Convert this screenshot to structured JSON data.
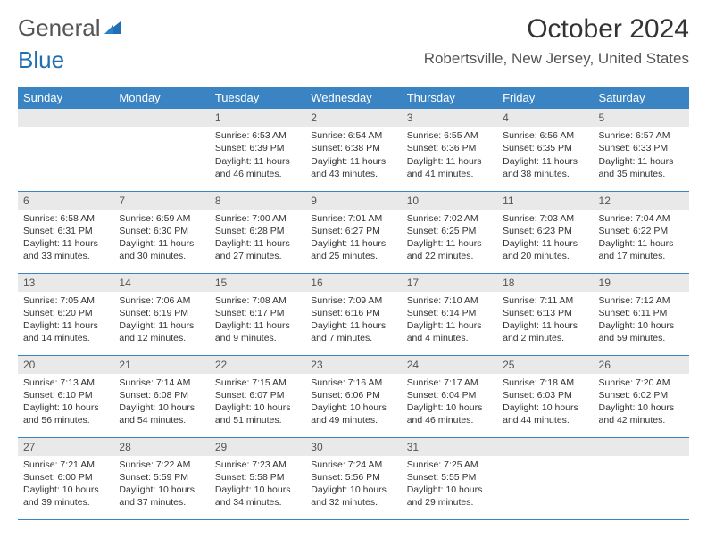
{
  "logo": {
    "text_gray": "General",
    "text_blue": "Blue"
  },
  "header": {
    "month_title": "October 2024",
    "location": "Robertsville, New Jersey, United States"
  },
  "styling": {
    "header_bg": "#3b84c4",
    "header_fg": "#ffffff",
    "daynum_bg": "#e9e9e9",
    "row_border": "#3b84c4",
    "body_text": "#333333",
    "font_family": "Arial",
    "th_fontsize": 13,
    "cell_fontsize": 10.5,
    "title_fontsize": 30,
    "location_fontsize": 17
  },
  "day_headers": [
    "Sunday",
    "Monday",
    "Tuesday",
    "Wednesday",
    "Thursday",
    "Friday",
    "Saturday"
  ],
  "weeks": [
    [
      null,
      null,
      {
        "n": "1",
        "sr": "Sunrise: 6:53 AM",
        "ss": "Sunset: 6:39 PM",
        "d1": "Daylight: 11 hours",
        "d2": "and 46 minutes."
      },
      {
        "n": "2",
        "sr": "Sunrise: 6:54 AM",
        "ss": "Sunset: 6:38 PM",
        "d1": "Daylight: 11 hours",
        "d2": "and 43 minutes."
      },
      {
        "n": "3",
        "sr": "Sunrise: 6:55 AM",
        "ss": "Sunset: 6:36 PM",
        "d1": "Daylight: 11 hours",
        "d2": "and 41 minutes."
      },
      {
        "n": "4",
        "sr": "Sunrise: 6:56 AM",
        "ss": "Sunset: 6:35 PM",
        "d1": "Daylight: 11 hours",
        "d2": "and 38 minutes."
      },
      {
        "n": "5",
        "sr": "Sunrise: 6:57 AM",
        "ss": "Sunset: 6:33 PM",
        "d1": "Daylight: 11 hours",
        "d2": "and 35 minutes."
      }
    ],
    [
      {
        "n": "6",
        "sr": "Sunrise: 6:58 AM",
        "ss": "Sunset: 6:31 PM",
        "d1": "Daylight: 11 hours",
        "d2": "and 33 minutes."
      },
      {
        "n": "7",
        "sr": "Sunrise: 6:59 AM",
        "ss": "Sunset: 6:30 PM",
        "d1": "Daylight: 11 hours",
        "d2": "and 30 minutes."
      },
      {
        "n": "8",
        "sr": "Sunrise: 7:00 AM",
        "ss": "Sunset: 6:28 PM",
        "d1": "Daylight: 11 hours",
        "d2": "and 27 minutes."
      },
      {
        "n": "9",
        "sr": "Sunrise: 7:01 AM",
        "ss": "Sunset: 6:27 PM",
        "d1": "Daylight: 11 hours",
        "d2": "and 25 minutes."
      },
      {
        "n": "10",
        "sr": "Sunrise: 7:02 AM",
        "ss": "Sunset: 6:25 PM",
        "d1": "Daylight: 11 hours",
        "d2": "and 22 minutes."
      },
      {
        "n": "11",
        "sr": "Sunrise: 7:03 AM",
        "ss": "Sunset: 6:23 PM",
        "d1": "Daylight: 11 hours",
        "d2": "and 20 minutes."
      },
      {
        "n": "12",
        "sr": "Sunrise: 7:04 AM",
        "ss": "Sunset: 6:22 PM",
        "d1": "Daylight: 11 hours",
        "d2": "and 17 minutes."
      }
    ],
    [
      {
        "n": "13",
        "sr": "Sunrise: 7:05 AM",
        "ss": "Sunset: 6:20 PM",
        "d1": "Daylight: 11 hours",
        "d2": "and 14 minutes."
      },
      {
        "n": "14",
        "sr": "Sunrise: 7:06 AM",
        "ss": "Sunset: 6:19 PM",
        "d1": "Daylight: 11 hours",
        "d2": "and 12 minutes."
      },
      {
        "n": "15",
        "sr": "Sunrise: 7:08 AM",
        "ss": "Sunset: 6:17 PM",
        "d1": "Daylight: 11 hours",
        "d2": "and 9 minutes."
      },
      {
        "n": "16",
        "sr": "Sunrise: 7:09 AM",
        "ss": "Sunset: 6:16 PM",
        "d1": "Daylight: 11 hours",
        "d2": "and 7 minutes."
      },
      {
        "n": "17",
        "sr": "Sunrise: 7:10 AM",
        "ss": "Sunset: 6:14 PM",
        "d1": "Daylight: 11 hours",
        "d2": "and 4 minutes."
      },
      {
        "n": "18",
        "sr": "Sunrise: 7:11 AM",
        "ss": "Sunset: 6:13 PM",
        "d1": "Daylight: 11 hours",
        "d2": "and 2 minutes."
      },
      {
        "n": "19",
        "sr": "Sunrise: 7:12 AM",
        "ss": "Sunset: 6:11 PM",
        "d1": "Daylight: 10 hours",
        "d2": "and 59 minutes."
      }
    ],
    [
      {
        "n": "20",
        "sr": "Sunrise: 7:13 AM",
        "ss": "Sunset: 6:10 PM",
        "d1": "Daylight: 10 hours",
        "d2": "and 56 minutes."
      },
      {
        "n": "21",
        "sr": "Sunrise: 7:14 AM",
        "ss": "Sunset: 6:08 PM",
        "d1": "Daylight: 10 hours",
        "d2": "and 54 minutes."
      },
      {
        "n": "22",
        "sr": "Sunrise: 7:15 AM",
        "ss": "Sunset: 6:07 PM",
        "d1": "Daylight: 10 hours",
        "d2": "and 51 minutes."
      },
      {
        "n": "23",
        "sr": "Sunrise: 7:16 AM",
        "ss": "Sunset: 6:06 PM",
        "d1": "Daylight: 10 hours",
        "d2": "and 49 minutes."
      },
      {
        "n": "24",
        "sr": "Sunrise: 7:17 AM",
        "ss": "Sunset: 6:04 PM",
        "d1": "Daylight: 10 hours",
        "d2": "and 46 minutes."
      },
      {
        "n": "25",
        "sr": "Sunrise: 7:18 AM",
        "ss": "Sunset: 6:03 PM",
        "d1": "Daylight: 10 hours",
        "d2": "and 44 minutes."
      },
      {
        "n": "26",
        "sr": "Sunrise: 7:20 AM",
        "ss": "Sunset: 6:02 PM",
        "d1": "Daylight: 10 hours",
        "d2": "and 42 minutes."
      }
    ],
    [
      {
        "n": "27",
        "sr": "Sunrise: 7:21 AM",
        "ss": "Sunset: 6:00 PM",
        "d1": "Daylight: 10 hours",
        "d2": "and 39 minutes."
      },
      {
        "n": "28",
        "sr": "Sunrise: 7:22 AM",
        "ss": "Sunset: 5:59 PM",
        "d1": "Daylight: 10 hours",
        "d2": "and 37 minutes."
      },
      {
        "n": "29",
        "sr": "Sunrise: 7:23 AM",
        "ss": "Sunset: 5:58 PM",
        "d1": "Daylight: 10 hours",
        "d2": "and 34 minutes."
      },
      {
        "n": "30",
        "sr": "Sunrise: 7:24 AM",
        "ss": "Sunset: 5:56 PM",
        "d1": "Daylight: 10 hours",
        "d2": "and 32 minutes."
      },
      {
        "n": "31",
        "sr": "Sunrise: 7:25 AM",
        "ss": "Sunset: 5:55 PM",
        "d1": "Daylight: 10 hours",
        "d2": "and 29 minutes."
      },
      null,
      null
    ]
  ]
}
